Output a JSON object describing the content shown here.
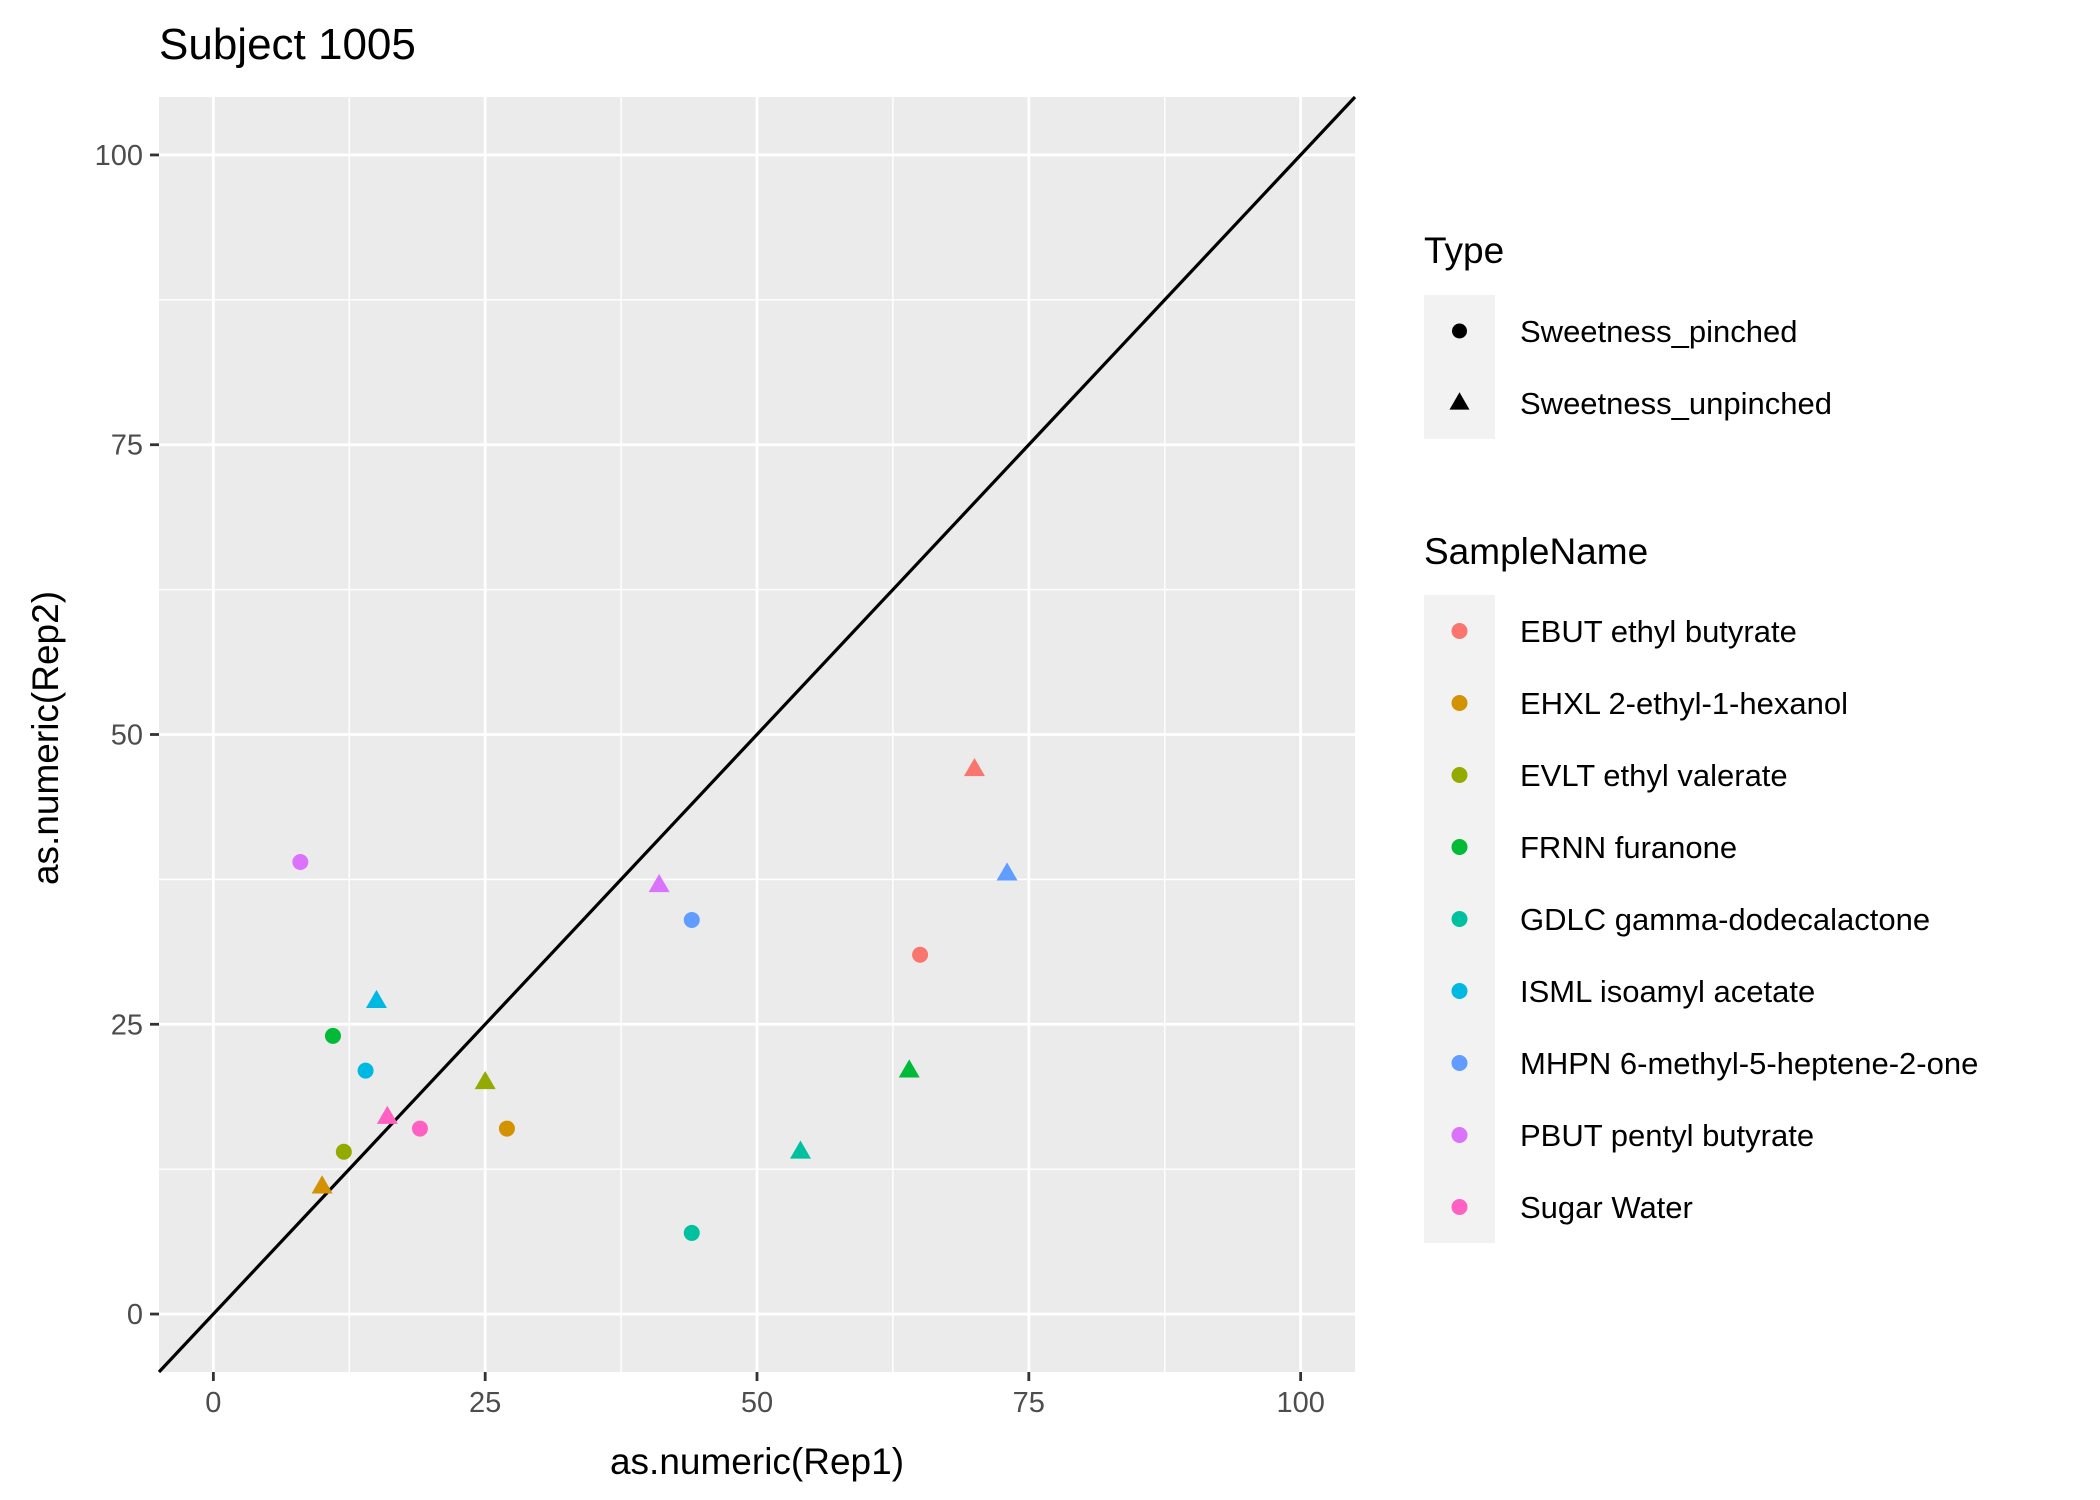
{
  "chart_data": {
    "type": "scatter",
    "title": "Subject 1005",
    "xlabel": "as.numeric(Rep1)",
    "ylabel": "as.numeric(Rep2)",
    "xlim": [
      -5,
      105
    ],
    "ylim": [
      -5,
      105
    ],
    "x_ticks": [
      "0",
      "25",
      "50",
      "75",
      "100"
    ],
    "y_ticks": [
      "0",
      "25",
      "50",
      "75",
      "100"
    ],
    "grid": true,
    "reference_line": "y = x",
    "legend_placement": "right",
    "shape_legend": {
      "title": "Type",
      "entries": [
        {
          "label": "Sweetness_pinched",
          "shape": "circle"
        },
        {
          "label": "Sweetness_unpinched",
          "shape": "triangle"
        }
      ]
    },
    "color_legend": {
      "title": "SampleName",
      "entries": [
        {
          "label": "EBUT ethyl butyrate",
          "color": "#F8766D"
        },
        {
          "label": "EHXL 2-ethyl-1-hexanol",
          "color": "#D39200"
        },
        {
          "label": "EVLT ethyl valerate",
          "color": "#93AA00"
        },
        {
          "label": "FRNN furanone",
          "color": "#00BA38"
        },
        {
          "label": "GDLC gamma-dodecalactone",
          "color": "#00C19F"
        },
        {
          "label": "ISML isoamyl acetate",
          "color": "#00B9E3"
        },
        {
          "label": "MHPN 6-methyl-5-heptene-2-one",
          "color": "#619CFF"
        },
        {
          "label": "PBUT pentyl butyrate",
          "color": "#DB72FB"
        },
        {
          "label": "Sugar Water",
          "color": "#FF61C3"
        }
      ]
    },
    "points": [
      {
        "sample": "EBUT ethyl butyrate",
        "type": "Sweetness_pinched",
        "x": 65,
        "y": 31
      },
      {
        "sample": "EBUT ethyl butyrate",
        "type": "Sweetness_unpinched",
        "x": 70,
        "y": 47
      },
      {
        "sample": "EHXL 2-ethyl-1-hexanol",
        "type": "Sweetness_pinched",
        "x": 27,
        "y": 16
      },
      {
        "sample": "EHXL 2-ethyl-1-hexanol",
        "type": "Sweetness_unpinched",
        "x": 10,
        "y": 11
      },
      {
        "sample": "EVLT ethyl valerate",
        "type": "Sweetness_pinched",
        "x": 12,
        "y": 14
      },
      {
        "sample": "EVLT ethyl valerate",
        "type": "Sweetness_unpinched",
        "x": 25,
        "y": 20
      },
      {
        "sample": "FRNN furanone",
        "type": "Sweetness_pinched",
        "x": 11,
        "y": 24
      },
      {
        "sample": "FRNN furanone",
        "type": "Sweetness_unpinched",
        "x": 64,
        "y": 21
      },
      {
        "sample": "GDLC gamma-dodecalactone",
        "type": "Sweetness_pinched",
        "x": 44,
        "y": 7
      },
      {
        "sample": "GDLC gamma-dodecalactone",
        "type": "Sweetness_unpinched",
        "x": 54,
        "y": 14
      },
      {
        "sample": "ISML isoamyl acetate",
        "type": "Sweetness_pinched",
        "x": 14,
        "y": 21
      },
      {
        "sample": "ISML isoamyl acetate",
        "type": "Sweetness_unpinched",
        "x": 15,
        "y": 27
      },
      {
        "sample": "MHPN 6-methyl-5-heptene-2-one",
        "type": "Sweetness_pinched",
        "x": 44,
        "y": 34
      },
      {
        "sample": "MHPN 6-methyl-5-heptene-2-one",
        "type": "Sweetness_unpinched",
        "x": 73,
        "y": 38
      },
      {
        "sample": "PBUT pentyl butyrate",
        "type": "Sweetness_pinched",
        "x": 8,
        "y": 39
      },
      {
        "sample": "PBUT pentyl butyrate",
        "type": "Sweetness_unpinched",
        "x": 41,
        "y": 37
      },
      {
        "sample": "Sugar Water",
        "type": "Sweetness_pinched",
        "x": 19,
        "y": 16
      },
      {
        "sample": "Sugar Water",
        "type": "Sweetness_unpinched",
        "x": 16,
        "y": 17
      }
    ],
    "colors": {
      "panel_background": "#EBEBEB",
      "grid_major": "#FFFFFF",
      "legend_key_background": "#F2F2F2",
      "reference_line": "#000000"
    }
  }
}
